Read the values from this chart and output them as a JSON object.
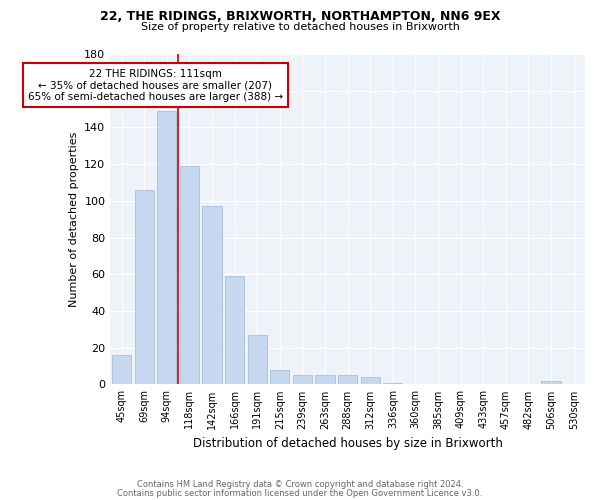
{
  "title1": "22, THE RIDINGS, BRIXWORTH, NORTHAMPTON, NN6 9EX",
  "title2": "Size of property relative to detached houses in Brixworth",
  "xlabel": "Distribution of detached houses by size in Brixworth",
  "ylabel": "Number of detached properties",
  "categories": [
    "45sqm",
    "69sqm",
    "94sqm",
    "118sqm",
    "142sqm",
    "166sqm",
    "191sqm",
    "215sqm",
    "239sqm",
    "263sqm",
    "288sqm",
    "312sqm",
    "336sqm",
    "360sqm",
    "385sqm",
    "409sqm",
    "433sqm",
    "457sqm",
    "482sqm",
    "506sqm",
    "530sqm"
  ],
  "values": [
    16,
    106,
    149,
    119,
    97,
    59,
    27,
    8,
    5,
    5,
    5,
    4,
    1,
    0,
    0,
    0,
    0,
    0,
    0,
    2,
    0
  ],
  "bar_color": "#c5d8f0",
  "bar_edge_color": "#a0b8d8",
  "property_line_index": 3,
  "property_line_color": "#cc0000",
  "annotation_text": "22 THE RIDINGS: 111sqm\n← 35% of detached houses are smaller (207)\n65% of semi-detached houses are larger (388) →",
  "annotation_box_color": "#cc0000",
  "footer1": "Contains HM Land Registry data © Crown copyright and database right 2024.",
  "footer2": "Contains public sector information licensed under the Open Government Licence v3.0.",
  "background_color": "#eef3fa",
  "ylim": [
    0,
    180
  ],
  "yticks": [
    0,
    20,
    40,
    60,
    80,
    100,
    120,
    140,
    160,
    180
  ]
}
